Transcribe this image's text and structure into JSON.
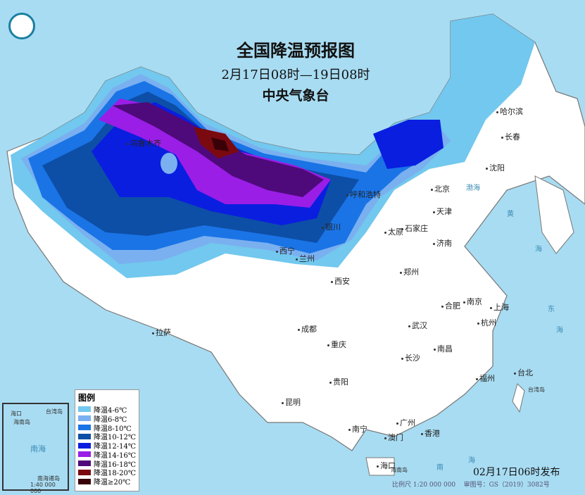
{
  "title": "全国降温预报图",
  "period": "2月17日08时—19日08时",
  "agency": "中央气象台",
  "published": "02月17日06时发布",
  "scale": "比例尺 1:20 000 000",
  "map_approval": "审图号：GS（2019）3082号",
  "inset": {
    "sea": "南海",
    "islands": "南海诸岛",
    "scale": "1:40 000 000",
    "labels": [
      "海口",
      "海南岛",
      "台湾岛"
    ]
  },
  "legend": {
    "title": "图例",
    "items": [
      {
        "label": "降温4-6℃",
        "color": "#72c8ee"
      },
      {
        "label": "降温6-8℃",
        "color": "#7ab0f0"
      },
      {
        "label": "降温8-10℃",
        "color": "#1a74e6"
      },
      {
        "label": "降温10-12℃",
        "color": "#0d4fa6"
      },
      {
        "label": "降温12-14℃",
        "color": "#0a1ee0"
      },
      {
        "label": "降温14-16℃",
        "color": "#9a1ee6"
      },
      {
        "label": "降温16-18℃",
        "color": "#4e0a7a"
      },
      {
        "label": "降温18-20℃",
        "color": "#7a0a10"
      },
      {
        "label": "降温≥20℃",
        "color": "#3a0008"
      }
    ]
  },
  "cities": [
    "哈尔滨",
    "长春",
    "沈阳",
    "北京",
    "天津",
    "呼和浩特",
    "石家庄",
    "太原",
    "济南",
    "银川",
    "西宁",
    "兰州",
    "郑州",
    "西安",
    "合肥",
    "南京",
    "上海",
    "武汉",
    "杭州",
    "成都",
    "重庆",
    "南昌",
    "长沙",
    "拉萨",
    "福州",
    "台北",
    "贵阳",
    "昆明",
    "南宁",
    "广州",
    "香港",
    "澳门",
    "海口",
    "乌鲁木齐"
  ],
  "seas": [
    "黄",
    "海",
    "东",
    "海",
    "南",
    "海",
    "渤海"
  ],
  "islands": [
    "海南岛",
    "台湾岛"
  ]
}
